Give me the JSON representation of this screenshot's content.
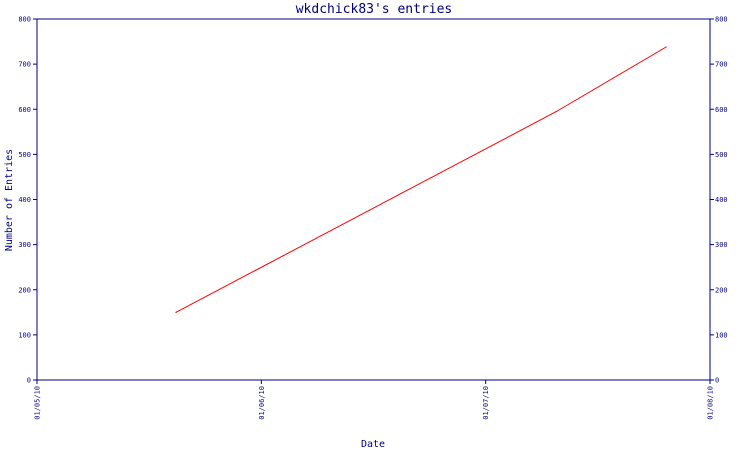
{
  "chart_data": {
    "type": "line",
    "title": "wkdchick83's entries",
    "xlabel": "Date",
    "ylabel": "Number of Entries",
    "x_tick_labels": [
      "01/05/10",
      "01/06/10",
      "01/07/10",
      "01/08/10"
    ],
    "x_range": [
      "2010-05-01",
      "2010-08-01"
    ],
    "ylim": [
      0,
      800
    ],
    "y_ticks": [
      0,
      100,
      200,
      300,
      400,
      500,
      600,
      700,
      800
    ],
    "grid": false,
    "series": [
      {
        "color": "#ff0000",
        "points": [
          {
            "x": "2010-05-20",
            "y": 150
          },
          {
            "x": "2010-07-11",
            "y": 595
          },
          {
            "x": "2010-07-26",
            "y": 738
          }
        ]
      }
    ]
  },
  "colors": {
    "axis": "#000080",
    "text": "#000080",
    "line": "#ff0000",
    "background": "#ffffff"
  }
}
